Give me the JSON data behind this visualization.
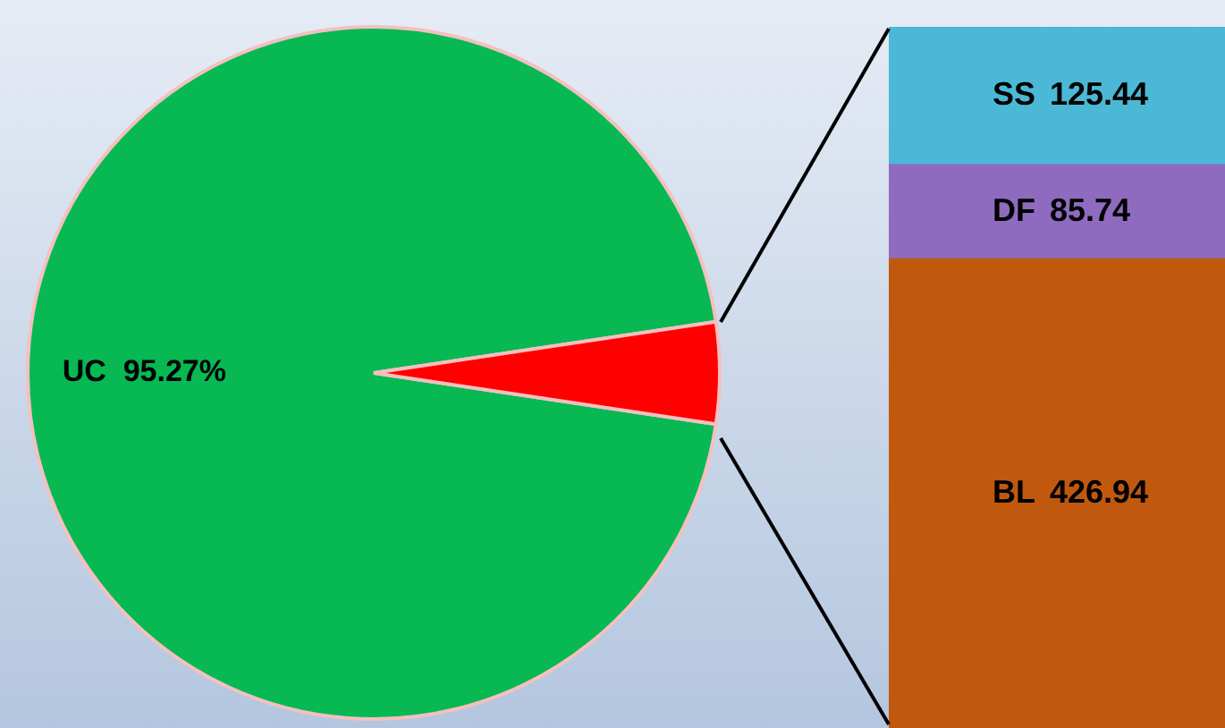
{
  "chart_data": [
    {
      "type": "pie",
      "categories": [
        "UC",
        null
      ],
      "values": [
        95.27,
        4.73
      ],
      "colors": [
        "#07b853",
        "#ff0000"
      ],
      "value_labels": [
        "95.27%",
        null
      ],
      "legend": false
    },
    {
      "type": "bar",
      "stacked": true,
      "categories": [
        null
      ],
      "data_labels": true,
      "legend": false,
      "series": [
        {
          "name": "BL",
          "color": "#c0590e",
          "values": [
            426.94
          ]
        },
        {
          "name": "DF",
          "color": "#8e6bbf",
          "values": [
            85.74
          ]
        },
        {
          "name": "SS",
          "color": "#4bb8d6",
          "values": [
            125.44
          ]
        }
      ]
    }
  ]
}
